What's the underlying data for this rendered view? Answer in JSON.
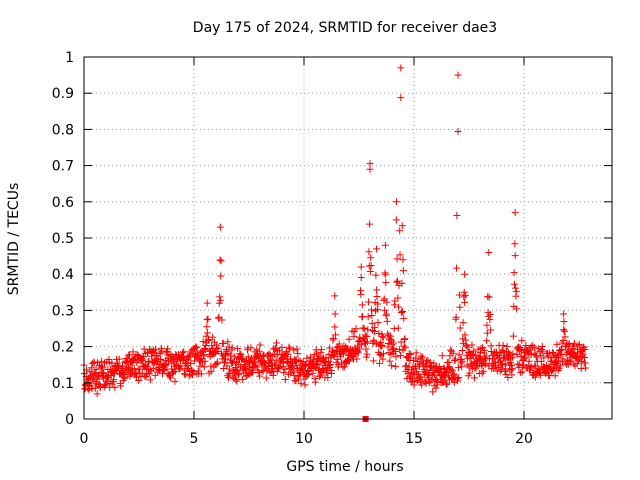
{
  "chart_data": {
    "type": "scatter",
    "title": "Day 175 of 2024, SRMTID for receiver dae3",
    "xlabel": "GPS time / hours",
    "ylabel": "SRMTID / TECUs",
    "xlim": [
      0,
      24
    ],
    "ylim": [
      0,
      1
    ],
    "x_ticks": [
      0,
      5,
      10,
      15,
      20
    ],
    "x_tick_labels": [
      "0",
      "5",
      "10",
      "15",
      "20"
    ],
    "y_ticks": [
      0,
      0.1,
      0.2,
      0.3,
      0.4,
      0.5,
      0.6,
      0.7,
      0.8,
      0.9,
      1
    ],
    "y_tick_labels": [
      "0",
      "0.1",
      "0.2",
      "0.3",
      "0.4",
      "0.5",
      "0.6",
      "0.7",
      "0.8",
      "0.9",
      "1"
    ],
    "grid": true,
    "series_color": "#ff0000",
    "marker": "plus",
    "samples_per_hour": 60,
    "data_end_hour": 22.8,
    "baseline": [
      [
        0,
        0.11
      ],
      [
        1,
        0.12
      ],
      [
        2,
        0.14
      ],
      [
        3,
        0.16
      ],
      [
        4,
        0.15
      ],
      [
        5,
        0.16
      ],
      [
        6,
        0.18
      ],
      [
        7,
        0.15
      ],
      [
        8,
        0.16
      ],
      [
        9,
        0.16
      ],
      [
        10,
        0.14
      ],
      [
        11,
        0.15
      ],
      [
        12,
        0.19
      ],
      [
        13,
        0.21
      ],
      [
        14,
        0.19
      ],
      [
        15,
        0.14
      ],
      [
        16,
        0.12
      ],
      [
        17,
        0.15
      ],
      [
        18,
        0.17
      ],
      [
        19,
        0.16
      ],
      [
        20,
        0.17
      ],
      [
        21,
        0.15
      ],
      [
        22,
        0.18
      ],
      [
        22.8,
        0.18
      ]
    ],
    "spread": 0.035,
    "peaks": [
      {
        "x": 6.2,
        "y": 0.53
      },
      {
        "x": 5.6,
        "y": 0.32
      },
      {
        "x": 11.4,
        "y": 0.34
      },
      {
        "x": 12.6,
        "y": 0.42
      },
      {
        "x": 13.0,
        "y": 0.69
      },
      {
        "x": 13.3,
        "y": 0.47
      },
      {
        "x": 13.7,
        "y": 0.48
      },
      {
        "x": 14.2,
        "y": 0.6
      },
      {
        "x": 14.4,
        "y": 0.97
      },
      {
        "x": 14.5,
        "y": 0.44
      },
      {
        "x": 17.0,
        "y": 0.95
      },
      {
        "x": 17.3,
        "y": 0.4
      },
      {
        "x": 18.4,
        "y": 0.46
      },
      {
        "x": 19.6,
        "y": 0.57
      },
      {
        "x": 21.8,
        "y": 0.29
      }
    ],
    "square_marker": {
      "x": 12.8,
      "y": 0.0
    }
  }
}
